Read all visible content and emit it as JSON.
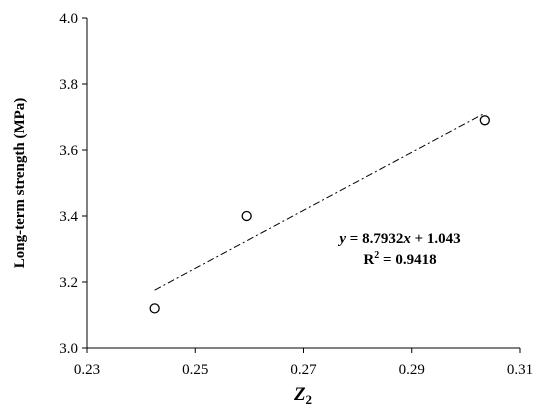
{
  "chart_data": {
    "type": "scatter",
    "title": "",
    "xlabel": "Z",
    "xlabel_sub": "2",
    "ylabel": "Long-term strength (MPa)",
    "xlim": [
      0.23,
      0.31
    ],
    "ylim": [
      3.0,
      4.0
    ],
    "x_ticks": [
      0.23,
      0.25,
      0.27,
      0.29,
      0.31
    ],
    "x_tick_labels": [
      "0.23",
      "0.25",
      "0.27",
      "0.29",
      "0.31"
    ],
    "y_ticks": [
      3.0,
      3.2,
      3.4,
      3.6,
      3.8,
      4.0
    ],
    "y_tick_labels": [
      "3.0",
      "3.2",
      "3.4",
      "3.6",
      "3.8",
      "4.0"
    ],
    "grid": false,
    "legend": "none",
    "series": [
      {
        "points": [
          {
            "x": 0.2425,
            "y": 3.12
          },
          {
            "x": 0.2595,
            "y": 3.4
          },
          {
            "x": 0.3035,
            "y": 3.69
          }
        ]
      }
    ],
    "trendline": {
      "style": "dash-dot",
      "x_range": [
        0.2425,
        0.3035
      ],
      "slope": 8.7932,
      "intercept": 1.043
    },
    "annotations": {
      "equation": {
        "y": "y",
        "eq": " = 8.7932",
        "x": "x",
        "rest": " + 1.043"
      },
      "r2": {
        "r": "R",
        "sup": "2",
        "value": " = 0.9418"
      }
    }
  }
}
